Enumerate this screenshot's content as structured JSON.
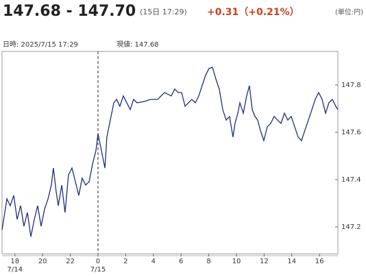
{
  "header": {
    "price": "147.68 - 147.70",
    "timestamp": "(15日 17:29)",
    "change": "+0.31（+0.21%）",
    "unit": "(単位:円)"
  },
  "chart_data": {
    "type": "line",
    "info_datetime": "日時: 2025/7/15  17:29",
    "info_current": "現値: 147.68",
    "xlim": [
      -6.93,
      17.33
    ],
    "ylim": [
      147.087,
      147.942
    ],
    "xticks": [
      {
        "value": -6,
        "label": "18"
      },
      {
        "value": -4,
        "label": "20"
      },
      {
        "value": -2,
        "label": "22"
      },
      0,
      2,
      4,
      6,
      8,
      10,
      12,
      14,
      16
    ],
    "date_labels": [
      {
        "value": -6,
        "label": "7/14"
      },
      {
        "value": 0,
        "label": "7/15"
      }
    ],
    "yticks": [
      147.2,
      147.4,
      147.6,
      147.8
    ],
    "series": [
      {
        "color": "#1f2a80",
        "x": [
          -6.93,
          -6.58,
          -6.34,
          -6.09,
          -5.84,
          -5.59,
          -5.35,
          -5.1,
          -4.85,
          -4.6,
          -4.36,
          -4.11,
          -3.86,
          -3.61,
          -3.37,
          -3.22,
          -3.02,
          -2.87,
          -2.62,
          -2.38,
          -2.13,
          -1.88,
          -1.63,
          -1.39,
          -1.14,
          -0.89,
          -0.64,
          -0.4,
          -0.15,
          0,
          0.15,
          0.35,
          0.5,
          0.64,
          0.84,
          0.99,
          1.14,
          1.34,
          1.58,
          1.83,
          2.08,
          2.33,
          2.57,
          2.82,
          3.32,
          3.81,
          4.31,
          4.8,
          5.3,
          5.54,
          5.79,
          6.04,
          6.29,
          6.53,
          6.78,
          7.03,
          7.28,
          7.52,
          7.77,
          8.02,
          8.27,
          8.51,
          8.76,
          9.01,
          9.26,
          9.5,
          9.75,
          9.9,
          10.1,
          10.25,
          10.5,
          10.74,
          10.94,
          11.14,
          11.34,
          11.53,
          11.73,
          11.98,
          12.23,
          12.48,
          12.72,
          12.97,
          13.22,
          13.47,
          13.71,
          13.96,
          14.21,
          14.46,
          14.7,
          14.95,
          15.2,
          15.45,
          15.69,
          15.94,
          16.19,
          16.44,
          16.68,
          16.93,
          17.18,
          17.33
        ],
        "values": [
          147.188,
          147.319,
          147.29,
          147.333,
          147.232,
          147.29,
          147.203,
          147.261,
          147.159,
          147.232,
          147.29,
          147.203,
          147.275,
          147.319,
          147.377,
          147.449,
          147.348,
          147.29,
          147.377,
          147.261,
          147.42,
          147.449,
          147.391,
          147.333,
          147.406,
          147.377,
          147.391,
          147.464,
          147.522,
          147.594,
          147.551,
          147.493,
          147.449,
          147.58,
          147.638,
          147.681,
          147.725,
          147.739,
          147.71,
          147.754,
          147.725,
          147.696,
          147.739,
          147.725,
          147.73,
          147.739,
          147.739,
          147.768,
          147.754,
          147.783,
          147.768,
          147.768,
          147.71,
          147.725,
          147.739,
          147.725,
          147.754,
          147.797,
          147.841,
          147.87,
          147.875,
          147.826,
          147.783,
          147.696,
          147.652,
          147.667,
          147.58,
          147.638,
          147.681,
          147.725,
          147.681,
          147.754,
          147.797,
          147.696,
          147.667,
          147.652,
          147.609,
          147.565,
          147.623,
          147.638,
          147.667,
          147.652,
          147.638,
          147.681,
          147.652,
          147.667,
          147.623,
          147.58,
          147.565,
          147.609,
          147.652,
          147.696,
          147.739,
          147.768,
          147.739,
          147.681,
          147.725,
          147.739,
          147.71,
          147.696
        ]
      }
    ]
  }
}
